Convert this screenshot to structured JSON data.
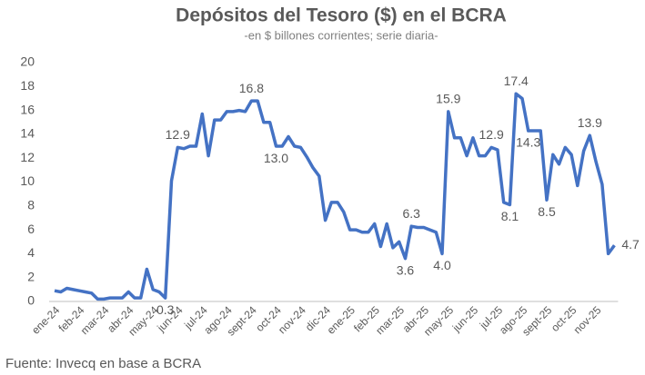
{
  "chart_data": {
    "type": "line",
    "title": "Depósitos del Tesoro ($) en el BCRA",
    "subtitle": "-en $ billones corrientes; serie diaria-",
    "source": "Fuente: Invecq en base a BCRA",
    "categories": [
      "ene-24",
      null,
      null,
      null,
      "feb-24",
      null,
      null,
      null,
      "mar-24",
      null,
      null,
      null,
      "abr-24",
      null,
      null,
      null,
      "may-24",
      null,
      null,
      null,
      "jun-24",
      null,
      null,
      null,
      "jul-24",
      null,
      null,
      null,
      "ago-24",
      null,
      null,
      null,
      "sept-24",
      null,
      null,
      null,
      "oct-24",
      null,
      null,
      null,
      "nov-24",
      null,
      null,
      null,
      "dic-24",
      null,
      null,
      null,
      "ene-25",
      null,
      null,
      null,
      "feb-25",
      null,
      null,
      null,
      "mar-25",
      null,
      null,
      null,
      "abr-25",
      null,
      null,
      null,
      "may-25",
      null,
      null,
      null,
      "jun-25",
      null,
      null,
      null,
      "jul-25",
      null,
      null,
      null,
      "ago-25",
      null,
      null,
      null,
      "sept-25",
      null,
      null,
      null,
      "oct-25",
      null,
      null,
      null,
      "nov-25",
      null,
      null,
      null
    ],
    "series": [
      {
        "color": "#4472c4",
        "values": [
          0.9,
          0.8,
          1.1,
          1.0,
          0.9,
          0.8,
          0.7,
          0.2,
          0.2,
          0.3,
          0.3,
          0.3,
          0.8,
          0.3,
          0.3,
          2.7,
          1.0,
          0.8,
          0.3,
          10.1,
          12.9,
          12.8,
          13.0,
          13.0,
          15.7,
          12.2,
          15.2,
          15.2,
          15.9,
          15.9,
          16.0,
          15.9,
          16.8,
          16.8,
          15.0,
          15.0,
          13.0,
          13.0,
          13.8,
          13.0,
          12.9,
          12.1,
          11.2,
          10.5,
          6.8,
          8.3,
          8.3,
          7.5,
          6.0,
          6.0,
          5.8,
          5.8,
          6.5,
          4.6,
          6.5,
          4.5,
          5.0,
          3.6,
          6.3,
          6.2,
          6.2,
          6.0,
          5.8,
          4.0,
          15.9,
          13.7,
          13.7,
          12.2,
          13.7,
          12.2,
          12.2,
          12.9,
          12.7,
          8.3,
          8.1,
          17.4,
          17.0,
          14.3,
          14.3,
          14.3,
          8.5,
          12.3,
          11.5,
          12.9,
          12.3,
          9.7,
          12.6,
          13.9,
          11.7,
          9.8,
          4.0,
          4.7
        ],
        "value_labels": [
          null,
          null,
          null,
          null,
          null,
          null,
          null,
          null,
          null,
          null,
          null,
          null,
          null,
          null,
          null,
          null,
          null,
          null,
          "0.3",
          null,
          "12.9",
          null,
          null,
          null,
          null,
          null,
          null,
          null,
          null,
          null,
          null,
          null,
          "16.8",
          null,
          null,
          null,
          "13.0",
          null,
          null,
          null,
          null,
          null,
          null,
          null,
          null,
          null,
          null,
          null,
          null,
          null,
          null,
          null,
          null,
          null,
          null,
          null,
          null,
          "3.6",
          "6.3",
          null,
          null,
          null,
          null,
          "4.0",
          "15.9",
          null,
          null,
          null,
          null,
          null,
          null,
          "12.9",
          null,
          null,
          "8.1",
          "17.4",
          null,
          "14.3",
          null,
          null,
          "8.5",
          null,
          null,
          null,
          null,
          null,
          null,
          "13.9",
          null,
          null,
          null,
          "4.7"
        ]
      }
    ],
    "ylim": [
      0,
      20
    ],
    "yticks": [
      0,
      2,
      4,
      6,
      8,
      10,
      12,
      14,
      16,
      18,
      20
    ],
    "grid": false
  }
}
